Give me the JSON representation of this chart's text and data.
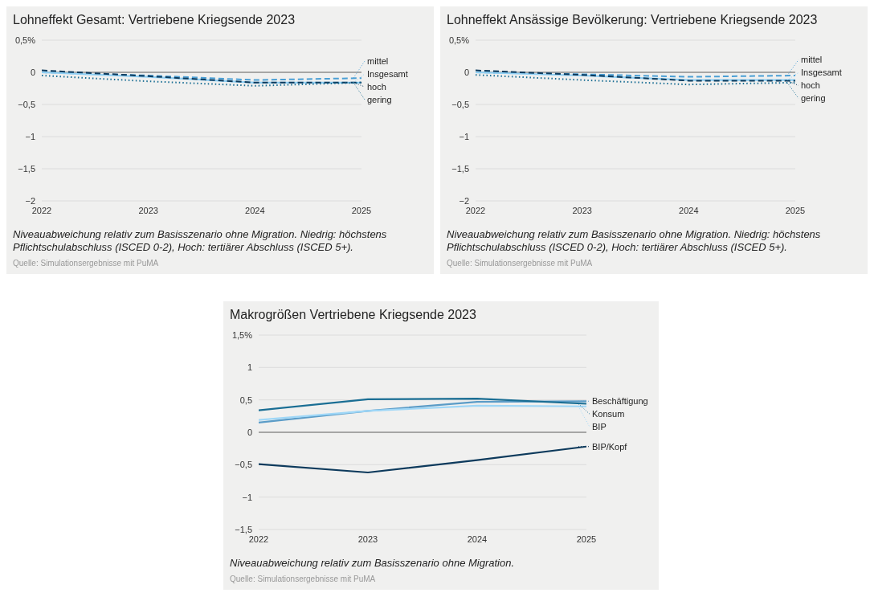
{
  "chart_data": [
    {
      "type": "line",
      "legend": "right",
      "title": "Lohneffekt Gesamt: Vertriebene Kriegsende 2023",
      "x": [
        2022,
        2023,
        2024,
        2025
      ],
      "xlim": [
        2022,
        2025
      ],
      "xticks": [
        2022,
        2023,
        2024,
        2025
      ],
      "ylim": [
        -2,
        0.5
      ],
      "yticks": [
        {
          "value": -2,
          "label": "−2"
        },
        {
          "value": -1.5,
          "label": "−1,5"
        },
        {
          "value": -1,
          "label": "−1"
        },
        {
          "value": -0.5,
          "label": "−0,5"
        },
        {
          "value": 0,
          "label": "0"
        },
        {
          "value": 0.5,
          "label": "0,5%"
        }
      ],
      "grid": "y",
      "ref_lines": [
        {
          "axis": "y",
          "value": 0,
          "color": "#666666"
        }
      ],
      "series": [
        {
          "name": "mittel",
          "color": "#4a9fd5",
          "line_style": "dashed",
          "values": [
            0.0,
            -0.05,
            -0.12,
            -0.09
          ]
        },
        {
          "name": "Insgesamt",
          "color": "#8fd0f5",
          "line_style": "solid",
          "values": [
            0.0,
            -0.07,
            -0.16,
            -0.16
          ]
        },
        {
          "name": "hoch",
          "color": "#0d3a5c",
          "line_style": "dashed",
          "values": [
            0.03,
            -0.06,
            -0.16,
            -0.16
          ]
        },
        {
          "name": "gering",
          "color": "#1a6e94",
          "line_style": "dotted",
          "values": [
            -0.05,
            -0.14,
            -0.21,
            -0.16
          ]
        }
      ],
      "annotations": [
        "Niveauabweichung relativ zum Basisszenario ohne Migration. Niedrig: höchstens Pflichtschulabschluss (ISCED 0-2), Hoch: tertiärer Abschluss (ISCED 5+).",
        "Quelle: Simulationsergebnisse mit PuMA"
      ]
    },
    {
      "type": "line",
      "legend": "right",
      "title": "Lohneffekt Ansässige Bevölkerung: Vertriebene Kriegsende 2023",
      "x": [
        2022,
        2023,
        2024,
        2025
      ],
      "xlim": [
        2022,
        2025
      ],
      "xticks": [
        2022,
        2023,
        2024,
        2025
      ],
      "ylim": [
        -2,
        0.5
      ],
      "yticks": [
        {
          "value": -2,
          "label": "−2"
        },
        {
          "value": -1.5,
          "label": "−1,5"
        },
        {
          "value": -1,
          "label": "−1"
        },
        {
          "value": -0.5,
          "label": "−0,5"
        },
        {
          "value": 0,
          "label": "0"
        },
        {
          "value": 0.5,
          "label": "0,5%"
        }
      ],
      "grid": "y",
      "ref_lines": [
        {
          "axis": "y",
          "value": 0,
          "color": "#666666"
        }
      ],
      "series": [
        {
          "name": "mittel",
          "color": "#4a9fd5",
          "line_style": "dashed",
          "values": [
            0.0,
            -0.03,
            -0.07,
            -0.05
          ]
        },
        {
          "name": "Insgesamt",
          "color": "#8fd0f5",
          "line_style": "solid",
          "values": [
            0.0,
            -0.05,
            -0.12,
            -0.12
          ]
        },
        {
          "name": "hoch",
          "color": "#0d3a5c",
          "line_style": "dashed",
          "values": [
            0.03,
            -0.04,
            -0.13,
            -0.13
          ]
        },
        {
          "name": "gering",
          "color": "#1a6e94",
          "line_style": "dotted",
          "values": [
            -0.04,
            -0.12,
            -0.19,
            -0.16
          ]
        }
      ],
      "annotations": [
        "Niveauabweichung relativ zum Basisszenario ohne Migration. Niedrig: höchstens Pflichtschulabschluss (ISCED 0-2), Hoch: tertiärer Abschluss (ISCED 5+).",
        "Quelle: Simulationsergebnisse mit PuMA"
      ]
    },
    {
      "type": "line",
      "legend": "right",
      "title": "Makrogrößen Vertriebene Kriegsende 2023",
      "x": [
        2022,
        2023,
        2024,
        2025
      ],
      "xlim": [
        2022,
        2025
      ],
      "xticks": [
        2022,
        2023,
        2024,
        2025
      ],
      "ylim": [
        -1.5,
        1.5
      ],
      "yticks": [
        {
          "value": -1.5,
          "label": "−1,5"
        },
        {
          "value": -1,
          "label": "−1"
        },
        {
          "value": -0.5,
          "label": "−0,5"
        },
        {
          "value": 0,
          "label": "0"
        },
        {
          "value": 0.5,
          "label": "0,5"
        },
        {
          "value": 1,
          "label": "1"
        },
        {
          "value": 1.5,
          "label": "1,5%"
        }
      ],
      "grid": "y",
      "ref_lines": [
        {
          "axis": "y",
          "value": 0,
          "color": "#666666"
        }
      ],
      "series": [
        {
          "name": "Beschäftigung",
          "color": "#5b9cc7",
          "line_style": "solid",
          "values": [
            0.15,
            0.33,
            0.47,
            0.48
          ]
        },
        {
          "name": "Konsum",
          "color": "#1a6e94",
          "line_style": "solid",
          "values": [
            0.34,
            0.51,
            0.52,
            0.44
          ]
        },
        {
          "name": "BIP",
          "color": "#9fd7f7",
          "line_style": "solid",
          "values": [
            0.19,
            0.33,
            0.41,
            0.4
          ]
        },
        {
          "name": "BIP/Kopf",
          "color": "#0d3a5c",
          "line_style": "solid",
          "values": [
            -0.49,
            -0.62,
            -0.43,
            -0.22
          ]
        }
      ],
      "annotations": [
        "Niveauabweichung relativ zum Basisszenario ohne Migration.",
        "Quelle: Simulationsergebnisse mit PuMA"
      ]
    }
  ]
}
